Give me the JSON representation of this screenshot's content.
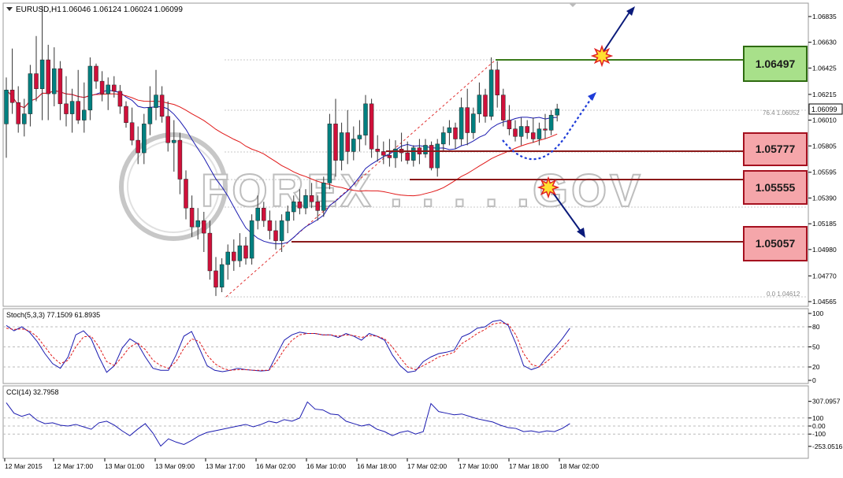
{
  "header": {
    "symbol": "EURUSD,H1",
    "ohlc": "1.06046 1.06124 1.06024 1.06099"
  },
  "colors": {
    "bull": "#008080",
    "bear": "#d0103a",
    "ma_fast": "#1b1bb0",
    "ma_slow": "#e01818",
    "level_green_fill": "#a8e08a",
    "level_green_border": "#2e6b10",
    "level_red_fill": "#f5a6aa",
    "level_red_border": "#a5101f",
    "level_line": "#8b1a1a",
    "arrow": "#0a1a7a",
    "grid": "#c8c8c8"
  },
  "price_axis": [
    "1.06835",
    "1.06630",
    "1.06425",
    "1.06215",
    "1.06010",
    "1.05805",
    "1.05595",
    "1.05390",
    "1.05185",
    "1.04980",
    "1.04770",
    "1.04565"
  ],
  "price_axis_values": [
    1.06835,
    1.0663,
    1.06425,
    1.06215,
    1.0601,
    1.05805,
    1.05595,
    1.0539,
    1.05185,
    1.0498,
    1.0477,
    1.04565
  ],
  "current_price": "1.06099",
  "fib": {
    "top_label": "76.4   1.06052",
    "bottom_label": "0.0   1.04612"
  },
  "levels": [
    {
      "label": "1.06497",
      "kind": "resistance"
    },
    {
      "label": "1.05777",
      "kind": "support"
    },
    {
      "label": "1.05555",
      "kind": "support"
    },
    {
      "label": "1.05057",
      "kind": "support"
    }
  ],
  "stoch": {
    "title": "Stoch(5,3,3) 77.1509 61.8935",
    "axis": [
      "100",
      "80",
      "50",
      "20",
      "0"
    ],
    "main": [
      82,
      74,
      80,
      72,
      58,
      40,
      25,
      18,
      35,
      68,
      74,
      62,
      35,
      12,
      22,
      48,
      62,
      55,
      35,
      18,
      15,
      15,
      38,
      66,
      73,
      48,
      22,
      15,
      13,
      15,
      18,
      16,
      15,
      14,
      15,
      38,
      60,
      68,
      72,
      70,
      70,
      68,
      68,
      64,
      70,
      66,
      60,
      70,
      66,
      60,
      38,
      22,
      12,
      14,
      28,
      35,
      40,
      42,
      45,
      65,
      70,
      78,
      80,
      88,
      90,
      82,
      55,
      22,
      16,
      20,
      35,
      48,
      62,
      78
    ],
    "signal": [
      78,
      76,
      77,
      74,
      65,
      50,
      35,
      25,
      30,
      50,
      65,
      66,
      50,
      28,
      22,
      35,
      50,
      56,
      46,
      30,
      22,
      18,
      28,
      48,
      62,
      58,
      38,
      25,
      18,
      15,
      16,
      16,
      15,
      15,
      15,
      28,
      46,
      60,
      68,
      70,
      70,
      68,
      68,
      66,
      68,
      67,
      64,
      67,
      66,
      62,
      50,
      34,
      20,
      16,
      22,
      28,
      35,
      38,
      42,
      55,
      62,
      70,
      76,
      84,
      86,
      84,
      68,
      40,
      24,
      20,
      28,
      38,
      50,
      62
    ]
  },
  "cci": {
    "title": "CCI(14) 32.7958",
    "axis": [
      "307.0957",
      "100",
      "0.00",
      "-100",
      "-253.0516"
    ],
    "values": [
      290,
      160,
      120,
      150,
      70,
      30,
      40,
      10,
      0,
      20,
      -10,
      -40,
      40,
      60,
      10,
      -60,
      -120,
      -40,
      30,
      -90,
      -250,
      -160,
      -200,
      -230,
      -180,
      -120,
      -80,
      -60,
      -40,
      -20,
      0,
      20,
      -10,
      20,
      60,
      40,
      80,
      60,
      100,
      300,
      210,
      200,
      150,
      140,
      60,
      30,
      0,
      20,
      -40,
      -70,
      -120,
      -80,
      -60,
      -100,
      -70,
      280,
      180,
      160,
      140,
      150,
      120,
      90,
      70,
      50,
      10,
      -20,
      -30,
      -70,
      -60,
      -80,
      -60,
      -70,
      -30,
      30
    ]
  },
  "time_axis": [
    "12 Mar 2015",
    "12 Mar 17:00",
    "13 Mar 01:00",
    "13 Mar 09:00",
    "13 Mar 17:00",
    "16 Mar 02:00",
    "16 Mar 10:00",
    "16 Mar 18:00",
    "17 Mar 02:00",
    "17 Mar 10:00",
    "17 Mar 18:00",
    "18 Mar 02:00"
  ],
  "watermark": "FOREX . . . . .GOV",
  "candles": [
    [
      1.0598,
      1.0635,
      1.0571,
      1.0625
    ],
    [
      1.0625,
      1.0658,
      1.0606,
      1.0615
    ],
    [
      1.0615,
      1.0628,
      1.0591,
      1.0598
    ],
    [
      1.0598,
      1.0618,
      1.0588,
      1.0606
    ],
    [
      1.0606,
      1.0645,
      1.0596,
      1.0638
    ],
    [
      1.0638,
      1.0668,
      1.0616,
      1.0626
    ],
    [
      1.0626,
      1.0692,
      1.0601,
      1.0649
    ],
    [
      1.0649,
      1.0661,
      1.0601,
      1.0622
    ],
    [
      1.0622,
      1.0659,
      1.0612,
      1.0642
    ],
    [
      1.0642,
      1.0648,
      1.0601,
      1.0614
    ],
    [
      1.0614,
      1.0636,
      1.0596,
      1.0606
    ],
    [
      1.0606,
      1.0626,
      1.0591,
      1.0616
    ],
    [
      1.0616,
      1.0641,
      1.0598,
      1.0601
    ],
    [
      1.0601,
      1.0631,
      1.0591,
      1.0609
    ],
    [
      1.0609,
      1.0651,
      1.0601,
      1.0644
    ],
    [
      1.0644,
      1.0646,
      1.0626,
      1.0632
    ],
    [
      1.0632,
      1.064,
      1.0616,
      1.0622
    ],
    [
      1.0622,
      1.0635,
      1.0609,
      1.0629
    ],
    [
      1.0629,
      1.0636,
      1.0619,
      1.0624
    ],
    [
      1.0624,
      1.0629,
      1.0606,
      1.0612
    ],
    [
      1.0612,
      1.0616,
      1.0595,
      1.0599
    ],
    [
      1.0599,
      1.0611,
      1.0581,
      1.0585
    ],
    [
      1.0585,
      1.0596,
      1.0566,
      1.0575
    ],
    [
      1.0575,
      1.0606,
      1.0566,
      1.0598
    ],
    [
      1.0598,
      1.0628,
      1.0589,
      1.0611
    ],
    [
      1.0611,
      1.0641,
      1.0601,
      1.0621
    ],
    [
      1.0621,
      1.0628,
      1.0599,
      1.0604
    ],
    [
      1.0604,
      1.0616,
      1.0576,
      1.0583
    ],
    [
      1.0583,
      1.0601,
      1.056,
      1.0585
    ],
    [
      1.0585,
      1.0591,
      1.0542,
      1.0554
    ],
    [
      1.0554,
      1.0561,
      1.0522,
      1.0531
    ],
    [
      1.0531,
      1.0541,
      1.0508,
      1.0516
    ],
    [
      1.0516,
      1.0531,
      1.0506,
      1.0521
    ],
    [
      1.0521,
      1.0528,
      1.0496,
      1.0511
    ],
    [
      1.0511,
      1.0521,
      1.0474,
      1.0481
    ],
    [
      1.0481,
      1.0492,
      1.0461,
      1.0468
    ],
    [
      1.0468,
      1.0491,
      1.0464,
      1.0486
    ],
    [
      1.0486,
      1.0502,
      1.0474,
      1.0496
    ],
    [
      1.0496,
      1.0506,
      1.0481,
      1.0489
    ],
    [
      1.0489,
      1.0511,
      1.0484,
      1.0501
    ],
    [
      1.0501,
      1.0508,
      1.0486,
      1.0491
    ],
    [
      1.0491,
      1.0526,
      1.0486,
      1.0521
    ],
    [
      1.0521,
      1.0541,
      1.0514,
      1.0531
    ],
    [
      1.0531,
      1.0536,
      1.0516,
      1.0521
    ],
    [
      1.0521,
      1.0529,
      1.0506,
      1.0513
    ],
    [
      1.0513,
      1.0521,
      1.0498,
      1.0505
    ],
    [
      1.0505,
      1.0526,
      1.0496,
      1.0521
    ],
    [
      1.0521,
      1.0533,
      1.0511,
      1.0528
    ],
    [
      1.0528,
      1.0541,
      1.0521,
      1.0536
    ],
    [
      1.0536,
      1.0546,
      1.0526,
      1.0531
    ],
    [
      1.0531,
      1.0546,
      1.0526,
      1.0541
    ],
    [
      1.0541,
      1.0551,
      1.0531,
      1.0536
    ],
    [
      1.0536,
      1.0541,
      1.0521,
      1.0529
    ],
    [
      1.0529,
      1.0556,
      1.0524,
      1.0551
    ],
    [
      1.0551,
      1.0606,
      1.0546,
      1.0598
    ],
    [
      1.0598,
      1.0618,
      1.0556,
      1.0569
    ],
    [
      1.0569,
      1.0599,
      1.0561,
      1.0591
    ],
    [
      1.0591,
      1.0609,
      1.0566,
      1.0576
    ],
    [
      1.0576,
      1.0596,
      1.0569,
      1.0586
    ],
    [
      1.0586,
      1.0601,
      1.0576,
      1.0589
    ],
    [
      1.0589,
      1.0621,
      1.0581,
      1.0614
    ],
    [
      1.0614,
      1.0618,
      1.0571,
      1.0578
    ],
    [
      1.0578,
      1.0589,
      1.0568,
      1.0576
    ],
    [
      1.0576,
      1.0584,
      1.0566,
      1.0573
    ],
    [
      1.0573,
      1.0586,
      1.0564,
      1.0571
    ],
    [
      1.0571,
      1.0585,
      1.0563,
      1.0578
    ],
    [
      1.0578,
      1.0591,
      1.0568,
      1.0575
    ],
    [
      1.0575,
      1.0584,
      1.0566,
      1.0569
    ],
    [
      1.0569,
      1.0581,
      1.0564,
      1.0579
    ],
    [
      1.0579,
      1.0586,
      1.0566,
      1.0574
    ],
    [
      1.0574,
      1.0586,
      1.0571,
      1.0581
    ],
    [
      1.0581,
      1.0584,
      1.0561,
      1.0563
    ],
    [
      1.0563,
      1.0586,
      1.0556,
      1.0582
    ],
    [
      1.0582,
      1.0596,
      1.0576,
      1.0591
    ],
    [
      1.0591,
      1.0601,
      1.0581,
      1.0595
    ],
    [
      1.0595,
      1.0599,
      1.0578,
      1.0586
    ],
    [
      1.0586,
      1.0619,
      1.0581,
      1.0611
    ],
    [
      1.0611,
      1.0626,
      1.0581,
      1.0591
    ],
    [
      1.0591,
      1.0611,
      1.0586,
      1.0606
    ],
    [
      1.0606,
      1.0631,
      1.0599,
      1.0621
    ],
    [
      1.0621,
      1.0626,
      1.0599,
      1.0604
    ],
    [
      1.0604,
      1.0651,
      1.0601,
      1.0641
    ],
    [
      1.0641,
      1.0648,
      1.0611,
      1.0621
    ],
    [
      1.0621,
      1.0626,
      1.0596,
      1.0601
    ],
    [
      1.0601,
      1.0613,
      1.0589,
      1.0594
    ],
    [
      1.0594,
      1.0601,
      1.0584,
      1.0588
    ],
    [
      1.0588,
      1.0603,
      1.0581,
      1.0596
    ],
    [
      1.0596,
      1.0601,
      1.0586,
      1.0591
    ],
    [
      1.0591,
      1.0603,
      1.0583,
      1.0586
    ],
    [
      1.0586,
      1.0599,
      1.0581,
      1.0594
    ],
    [
      1.0594,
      1.0606,
      1.0586,
      1.0593
    ],
    [
      1.0593,
      1.0609,
      1.0589,
      1.0605
    ],
    [
      1.0605,
      1.0614,
      1.06,
      1.061
    ]
  ]
}
